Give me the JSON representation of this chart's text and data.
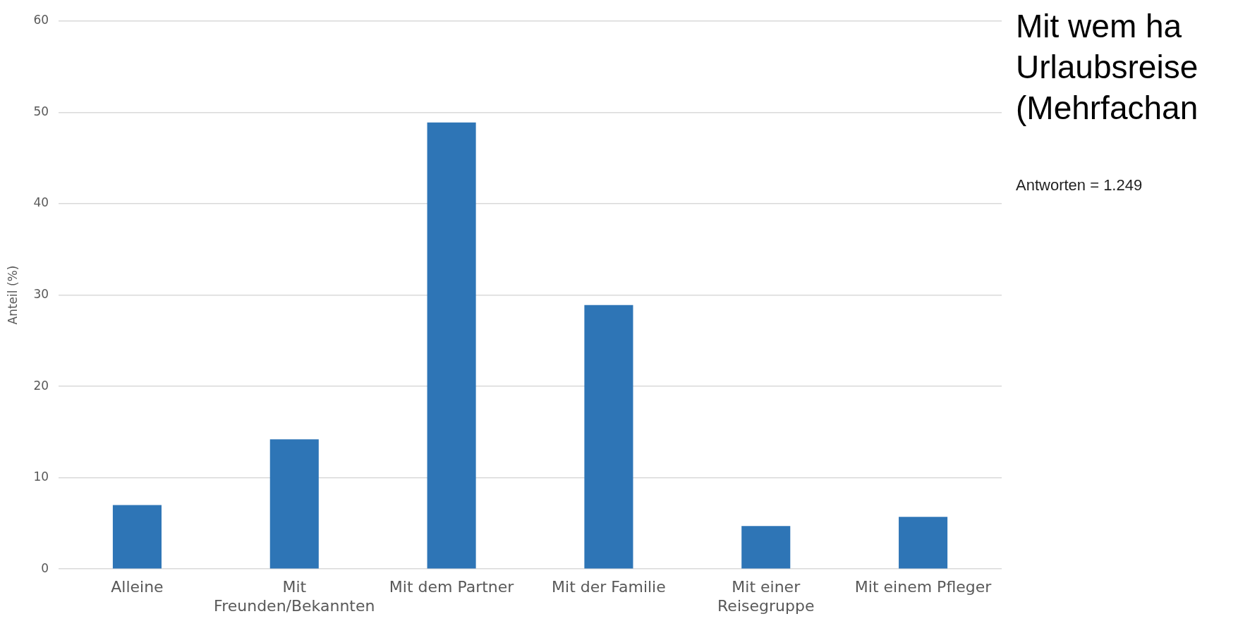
{
  "chart_data": {
    "type": "bar",
    "title": "Mit wem ha Urlaubsreise (Mehrfachan",
    "subtitle": "Antworten = 1.249",
    "ylabel": "Anteil (%)",
    "categories": [
      "Alleine",
      "Mit Freunden/Bekannten",
      "Mit dem Partner",
      "Mit der Familie",
      "Mit einer Reisegruppe",
      "Mit einem Pfleger"
    ],
    "values": [
      7.0,
      14.2,
      48.9,
      28.9,
      4.7,
      5.7
    ],
    "color": "#2e75b6",
    "ylim": [
      0,
      60
    ],
    "yticks": [
      0,
      10,
      20,
      30,
      40,
      50,
      60
    ],
    "grid": "y",
    "legend": false
  }
}
